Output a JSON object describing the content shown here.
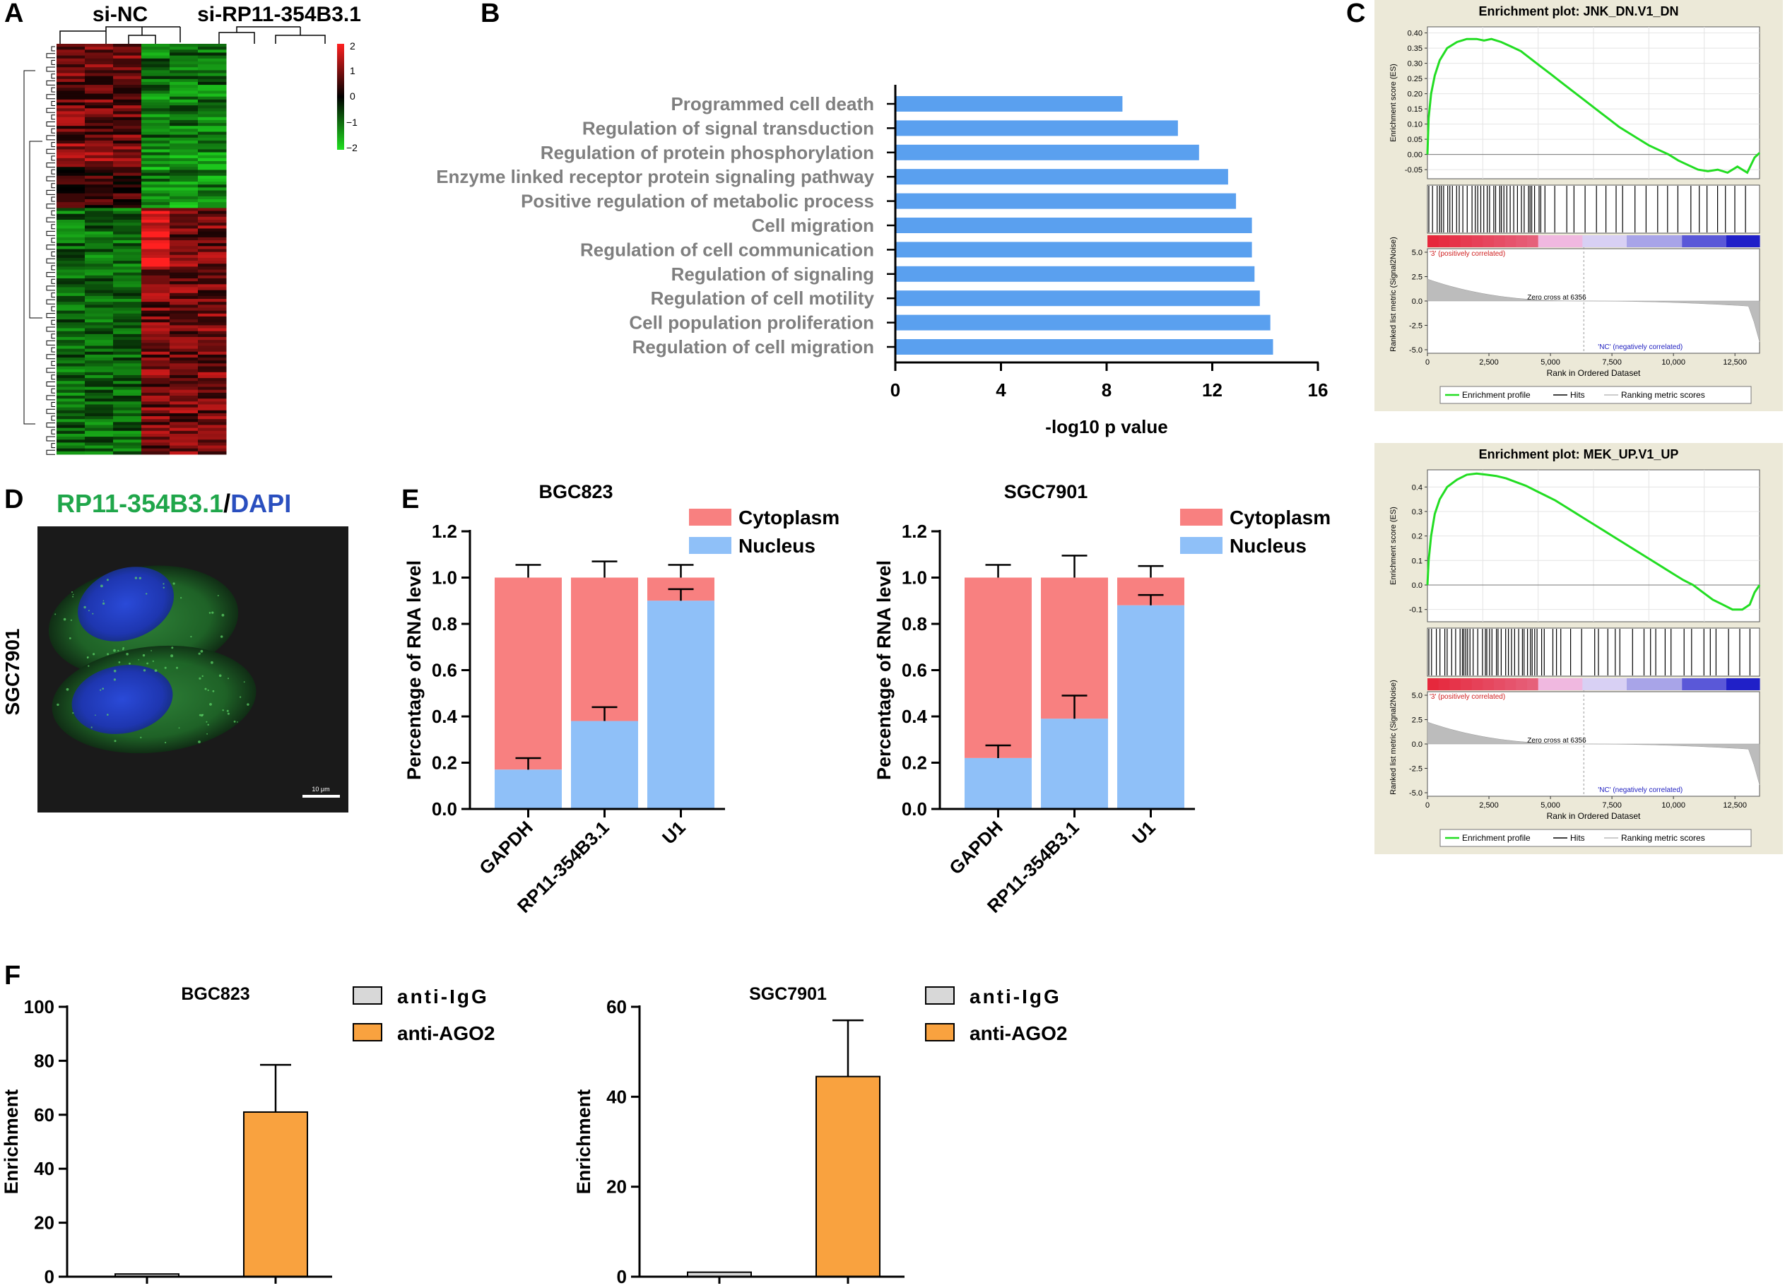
{
  "panels": {
    "a": "A",
    "b": "B",
    "c": "C",
    "d": "D",
    "e": "E",
    "f": "F"
  },
  "heatmap": {
    "group_labels": [
      "si-NC",
      "si-RP11-354B3.1"
    ],
    "color_scale": {
      "ticks": [
        "2",
        "1",
        "0",
        "−1",
        "−2"
      ],
      "high_color": "#ff2020",
      "mid_color": "#000000",
      "low_color": "#20e020"
    }
  },
  "microscopy": {
    "title_green": "RP11-354B3.1",
    "title_sep": "/",
    "title_blue": "DAPI",
    "side_label": "SGC7901",
    "scale_bar": "10 μm"
  },
  "chart_data": [
    {
      "id": "go_terms",
      "type": "bar",
      "orientation": "horizontal",
      "categories": [
        "Programmed cell death",
        "Regulation of signal transduction",
        "Regulation of protein phosphorylation",
        "Enzyme linked receptor protein signaling pathway",
        "Positive regulation of metabolic process",
        "Cell migration",
        "Regulation of cell communication",
        "Regulation of signaling",
        "Regulation of cell motility",
        "Cell population proliferation",
        "Regulation of cell migration"
      ],
      "values": [
        8.6,
        10.7,
        11.5,
        12.6,
        12.9,
        13.5,
        13.5,
        13.6,
        13.8,
        14.2,
        14.3
      ],
      "xlabel": "-log10 p value",
      "xlim": [
        0,
        16
      ],
      "xticks": [
        "0",
        "4",
        "8",
        "12",
        "16"
      ],
      "bar_color": "#5aa0ef"
    },
    {
      "id": "gsea_jnk",
      "type": "line",
      "title": "Enrichment plot: JNK_DN.V1_DN",
      "es_ylabel": "Enrichment score (ES)",
      "es_yticks": [
        "0.40",
        "0.35",
        "0.30",
        "0.25",
        "0.20",
        "0.15",
        "0.10",
        "0.05",
        "0.00",
        "-0.05"
      ],
      "es_ylim": [
        -0.08,
        0.42
      ],
      "metric_ylabel": "Ranked list metric (Signal2Noise)",
      "metric_yticks": [
        "5.0",
        "2.5",
        "0.0",
        "-2.5",
        "-5.0"
      ],
      "xlabel": "Rank in Ordered Dataset",
      "xticks": [
        "0",
        "2,500",
        "5,000",
        "7,500",
        "10,000",
        "12,500"
      ],
      "xlim": [
        0,
        13500
      ],
      "es_x": [
        0,
        50,
        150,
        300,
        500,
        800,
        1200,
        1600,
        2000,
        2300,
        2600,
        3000,
        3400,
        3800,
        4200,
        4600,
        5000,
        5400,
        5800,
        6200,
        6600,
        7000,
        7400,
        7800,
        8200,
        8600,
        9000,
        9400,
        9800,
        10200,
        10600,
        11000,
        11400,
        11800,
        12200,
        12600,
        13000,
        13300,
        13500
      ],
      "es_y": [
        0.0,
        0.12,
        0.2,
        0.26,
        0.31,
        0.35,
        0.37,
        0.38,
        0.38,
        0.375,
        0.38,
        0.37,
        0.355,
        0.34,
        0.315,
        0.29,
        0.265,
        0.24,
        0.215,
        0.19,
        0.165,
        0.14,
        0.115,
        0.09,
        0.07,
        0.05,
        0.03,
        0.015,
        0.0,
        -0.02,
        -0.035,
        -0.05,
        -0.055,
        -0.05,
        -0.06,
        -0.04,
        -0.06,
        -0.01,
        0.005
      ],
      "pos_label": "'3' (positively correlated)",
      "neg_label": "'NC' (negatively correlated)",
      "zero_cross": "Zero cross at 6356",
      "legend": [
        "Enrichment profile",
        "Hits",
        "Ranking metric scores"
      ]
    },
    {
      "id": "gsea_mek",
      "type": "line",
      "title": "Enrichment plot: MEK_UP.V1_UP",
      "es_ylabel": "Enrichment score (ES)",
      "es_yticks": [
        "0.4",
        "0.3",
        "0.2",
        "0.1",
        "0.0",
        "-0.1"
      ],
      "es_ylim": [
        -0.15,
        0.47
      ],
      "metric_ylabel": "Ranked list metric (Signal2Noise)",
      "metric_yticks": [
        "5.0",
        "2.5",
        "0.0",
        "-2.5",
        "-5.0"
      ],
      "xlabel": "Rank in Ordered Dataset",
      "xticks": [
        "0",
        "2,500",
        "5,000",
        "7,500",
        "10,000",
        "12,500"
      ],
      "xlim": [
        0,
        13500
      ],
      "es_x": [
        0,
        50,
        150,
        300,
        500,
        800,
        1200,
        1600,
        2000,
        2400,
        2800,
        3200,
        3600,
        4000,
        4400,
        4800,
        5200,
        5600,
        6000,
        6400,
        6800,
        7200,
        7600,
        8000,
        8400,
        8800,
        9200,
        9600,
        10000,
        10400,
        10800,
        11200,
        11600,
        12000,
        12400,
        12800,
        13100,
        13300,
        13500
      ],
      "es_y": [
        0.0,
        0.1,
        0.2,
        0.29,
        0.35,
        0.4,
        0.43,
        0.45,
        0.455,
        0.45,
        0.445,
        0.435,
        0.42,
        0.405,
        0.385,
        0.365,
        0.345,
        0.32,
        0.295,
        0.27,
        0.245,
        0.22,
        0.195,
        0.17,
        0.145,
        0.12,
        0.095,
        0.07,
        0.045,
        0.02,
        0.0,
        -0.03,
        -0.06,
        -0.08,
        -0.1,
        -0.1,
        -0.08,
        -0.03,
        0.0
      ],
      "pos_label": "'3' (positively correlated)",
      "neg_label": "'NC' (negatively correlated)",
      "zero_cross": "Zero cross at 6356",
      "legend": [
        "Enrichment profile",
        "Hits",
        "Ranking metric scores"
      ]
    },
    {
      "id": "fraction_bgc823",
      "type": "bar",
      "stacked": true,
      "title": "BGC823",
      "categories": [
        "GAPDH",
        "RP11-354B3.1",
        "U1"
      ],
      "series": [
        {
          "name": "Nucleus",
          "values": [
            0.17,
            0.38,
            0.9
          ],
          "errors": [
            0.05,
            0.06,
            0.05
          ],
          "color": "#8fc0f8"
        },
        {
          "name": "Cytoplasm",
          "values": [
            0.83,
            0.62,
            0.1
          ],
          "errors": [
            0.055,
            0.07,
            0.055
          ],
          "color": "#f88080"
        }
      ],
      "legend_order": [
        "Cytoplasm",
        "Nucleus"
      ],
      "ylabel": "Percentage of RNA level",
      "ylim": [
        0,
        1.2
      ],
      "yticks": [
        "0.0",
        "0.2",
        "0.4",
        "0.6",
        "0.8",
        "1.0",
        "1.2"
      ]
    },
    {
      "id": "fraction_sgc7901",
      "type": "bar",
      "stacked": true,
      "title": "SGC7901",
      "categories": [
        "GAPDH",
        "RP11-354B3.1",
        "U1"
      ],
      "series": [
        {
          "name": "Nucleus",
          "values": [
            0.22,
            0.39,
            0.88
          ],
          "errors": [
            0.055,
            0.1,
            0.045
          ],
          "color": "#8fc0f8"
        },
        {
          "name": "Cytoplasm",
          "values": [
            0.78,
            0.61,
            0.12
          ],
          "errors": [
            0.055,
            0.095,
            0.05
          ],
          "color": "#f88080"
        }
      ],
      "legend_order": [
        "Cytoplasm",
        "Nucleus"
      ],
      "ylabel": "Percentage of RNA level",
      "ylim": [
        0,
        1.2
      ],
      "yticks": [
        "0.0",
        "0.2",
        "0.4",
        "0.6",
        "0.8",
        "1.0",
        "1.2"
      ]
    },
    {
      "id": "rip_bgc823",
      "type": "bar",
      "title": "BGC823",
      "categories": [
        "anti-IgG",
        "anti-AGO2"
      ],
      "values": [
        1,
        61
      ],
      "errors": [
        0,
        17.5
      ],
      "colors": [
        "#d8d8d8",
        "#f9a23f"
      ],
      "ylabel": "Enrichment",
      "ylim": [
        0,
        100
      ],
      "yticks": [
        "0",
        "20",
        "40",
        "60",
        "80",
        "100"
      ]
    },
    {
      "id": "rip_sgc7901",
      "type": "bar",
      "title": "SGC7901",
      "categories": [
        "anti-IgG",
        "anti-AGO2"
      ],
      "values": [
        1,
        44.5
      ],
      "errors": [
        0,
        12.5
      ],
      "colors": [
        "#d8d8d8",
        "#f9a23f"
      ],
      "ylabel": "Enrichment",
      "ylim": [
        0,
        60
      ],
      "yticks": [
        "0",
        "20",
        "40",
        "60"
      ]
    }
  ]
}
